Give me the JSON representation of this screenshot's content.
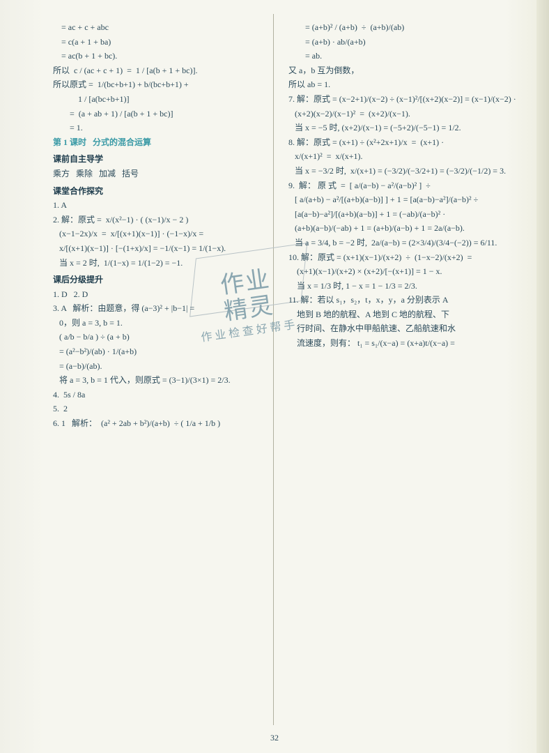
{
  "page_number": "32",
  "stamp": {
    "line1": "作业",
    "line2": "精灵",
    "line3": "作业检查好帮手"
  },
  "colors": {
    "text": "#2b4a5a",
    "accent_teal": "#3a9aa6",
    "watermark": "#8aa6b0",
    "paper": "#f6f6ef",
    "divider": "#b0b0a0"
  },
  "typography": {
    "body_fontsize_pt": 9,
    "heading_weight": "bold",
    "font_family": "SimSun / Songti"
  },
  "left_column": [
    {
      "style": "line",
      "text": "    = ac + c + abc"
    },
    {
      "style": "line",
      "text": "    = c(a + 1 + ba)"
    },
    {
      "style": "line",
      "text": "    = ac(b + 1 + bc)."
    },
    {
      "style": "line",
      "text": "所以  c / (ac + c + 1)  =  1 / [a(b + 1 + bc)]."
    },
    {
      "style": "line",
      "text": "所以原式 =  1/(bc+b+1) + b/(bc+b+1) +"
    },
    {
      "style": "line",
      "text": "            1 / [a(bc+b+1)]"
    },
    {
      "style": "line",
      "text": "        =  (a + ab + 1) / [a(b + 1 + bc)]"
    },
    {
      "style": "line",
      "text": "        = 1."
    },
    {
      "style": "teal",
      "text": "第 1 课时   分式的混合运算"
    },
    {
      "style": "sec",
      "text": "课前自主导学"
    },
    {
      "style": "line",
      "text": "乘方   乘除   加减   括号"
    },
    {
      "style": "sec",
      "text": "课堂合作探究"
    },
    {
      "style": "line",
      "text": "1. A"
    },
    {
      "style": "line",
      "text": "2. 解：原式 =  x/(x²−1) · ( (x−1)/x − 2 )"
    },
    {
      "style": "line",
      "text": "   (x−1−2x)/x  =  x/[(x+1)(x−1)] · (−1−x)/x ="
    },
    {
      "style": "line",
      "text": "   x/[(x+1)(x−1)] · [−(1+x)/x] = −1/(x−1) = 1/(1−x)."
    },
    {
      "style": "line",
      "text": "   当 x = 2 时,  1/(1−x) = 1/(1−2) = −1."
    },
    {
      "style": "sec",
      "text": "课后分级提升"
    },
    {
      "style": "line",
      "text": "1. D   2. D"
    },
    {
      "style": "line",
      "text": "3. A   解析：由题意，得 (a−3)² + |b−1| ="
    },
    {
      "style": "line",
      "text": "   0，则 a = 3, b = 1."
    },
    {
      "style": "line",
      "text": "   ( a/b − b/a ) ÷ (a + b)"
    },
    {
      "style": "line",
      "text": "   = (a²−b²)/(ab) · 1/(a+b)"
    },
    {
      "style": "line",
      "text": "   = (a−b)/(ab)."
    },
    {
      "style": "line",
      "text": "   将 a = 3, b = 1 代入，则原式 = (3−1)/(3×1) = 2/3."
    },
    {
      "style": "line",
      "text": "4.  5s / 8a"
    },
    {
      "style": "line",
      "text": "5.  2"
    },
    {
      "style": "line",
      "text": "6. 1   解析：  (a² + 2ab + b²)/(a+b)  ÷ ( 1/a + 1/b )"
    }
  ],
  "right_column": [
    {
      "style": "line",
      "text": "        = (a+b)² / (a+b)  ÷  (a+b)/(ab)"
    },
    {
      "style": "line",
      "text": "        = (a+b) · ab/(a+b)"
    },
    {
      "style": "line",
      "text": "        = ab."
    },
    {
      "style": "line",
      "text": "又 a，b 互为倒数，"
    },
    {
      "style": "line",
      "text": "所以 ab = 1."
    },
    {
      "style": "line",
      "text": "7. 解：原式 = (x−2+1)/(x−2) ÷ (x−1)²/[(x+2)(x−2)] = (x−1)/(x−2) ·"
    },
    {
      "style": "line",
      "text": "   (x+2)(x−2)/(x−1)²  =  (x+2)/(x−1)."
    },
    {
      "style": "line",
      "text": "   当 x = −5 时, (x+2)/(x−1) = (−5+2)/(−5−1) = 1/2."
    },
    {
      "style": "line",
      "text": "8. 解：原式 = (x+1) ÷ (x²+2x+1)/x  =  (x+1) ·"
    },
    {
      "style": "line",
      "text": "   x/(x+1)²  =  x/(x+1)."
    },
    {
      "style": "line",
      "text": "   当 x = −3/2 时,  x/(x+1) = (−3/2)/(−3/2+1) = (−3/2)/(−1/2) = 3."
    },
    {
      "style": "line",
      "text": "9.  解： 原 式  =  [ a/(a−b) − a²/(a−b)² ]  ÷"
    },
    {
      "style": "line",
      "text": "   [ a/(a+b) − a²/[(a+b)(a−b)] ] + 1 = [a(a−b)−a²]/(a−b)² ÷"
    },
    {
      "style": "line",
      "text": "   [a(a−b)−a²]/[(a+b)(a−b)] + 1 = (−ab)/(a−b)² ·"
    },
    {
      "style": "line",
      "text": "   (a+b)(a−b)/(−ab) + 1 = (a+b)/(a−b) + 1 = 2a/(a−b)."
    },
    {
      "style": "line",
      "text": "   当 a = 3/4, b = −2 时,  2a/(a−b) = (2×3/4)/(3/4−(−2)) = 6/11."
    },
    {
      "style": "line",
      "text": "10. 解：原式 = (x+1)(x−1)/(x+2)  ÷  (1−x−2)/(x+2)  ="
    },
    {
      "style": "line",
      "text": "    (x+1)(x−1)/(x+2) × (x+2)/[−(x+1)] = 1 − x."
    },
    {
      "style": "line",
      "text": "    当 x = 1/3 时, 1 − x = 1 − 1/3 = 2/3."
    },
    {
      "style": "line",
      "text": "11. 解：若以 s₁，s₂，t，x，y，a 分别表示 A"
    },
    {
      "style": "line",
      "text": "    地到 B 地的航程、A 地到 C 地的航程、下"
    },
    {
      "style": "line",
      "text": "    行时间、在静水中甲船航速、乙船航速和水"
    },
    {
      "style": "line",
      "text": "    流速度，则有： t₁ = s₁/(x−a) = (x+a)t/(x−a) ="
    }
  ]
}
